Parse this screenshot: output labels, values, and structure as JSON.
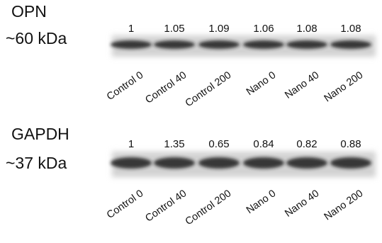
{
  "panels": [
    {
      "protein": "OPN",
      "size": "~60 kDa",
      "lanes": [
        {
          "name": "Control 0",
          "value": 1
        },
        {
          "name": "Control 40",
          "value": 1.05
        },
        {
          "name": "Control 200",
          "value": 1.09
        },
        {
          "name": "Nano 0",
          "value": 1.06
        },
        {
          "name": "Nano 40",
          "value": 1.08
        },
        {
          "name": "Nano 200",
          "value": 1.08
        }
      ]
    },
    {
      "protein": "GAPDH",
      "size": "~37 kDa",
      "lanes": [
        {
          "name": "Control 0",
          "value": 1
        },
        {
          "name": "Control 40",
          "value": 1.35
        },
        {
          "name": "Control 200",
          "value": 0.65
        },
        {
          "name": "Nano 0",
          "value": 0.84
        },
        {
          "name": "Nano 40",
          "value": 0.82
        },
        {
          "name": "Nano 200",
          "value": 0.88
        }
      ]
    }
  ]
}
